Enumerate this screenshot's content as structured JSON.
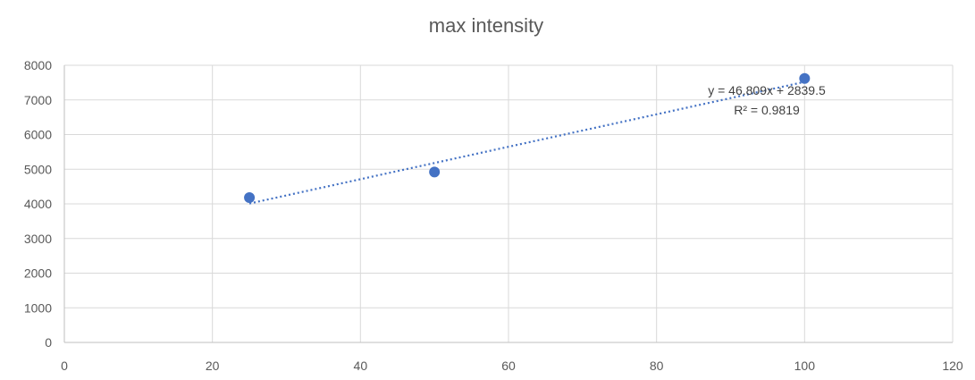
{
  "chart_data": {
    "type": "scatter",
    "title": "max intensity",
    "xlabel": "",
    "ylabel": "",
    "xlim": [
      0,
      120
    ],
    "ylim": [
      0,
      8000
    ],
    "x_ticks": [
      0,
      20,
      40,
      60,
      80,
      100,
      120
    ],
    "y_ticks": [
      0,
      1000,
      2000,
      3000,
      4000,
      5000,
      6000,
      7000,
      8000
    ],
    "grid": true,
    "legend": "none",
    "series": [
      {
        "x": [
          25,
          50,
          100
        ],
        "y": [
          4180,
          4920,
          7620
        ],
        "color": "#4472c4"
      }
    ],
    "trendline": {
      "type": "linear",
      "slope": 46.809,
      "intercept": 2839.5,
      "x_range": [
        25,
        100
      ],
      "equation": "y = 46.809x + 2839.5",
      "r_squared": "R² = 0.9819",
      "color": "#4472c4"
    }
  }
}
